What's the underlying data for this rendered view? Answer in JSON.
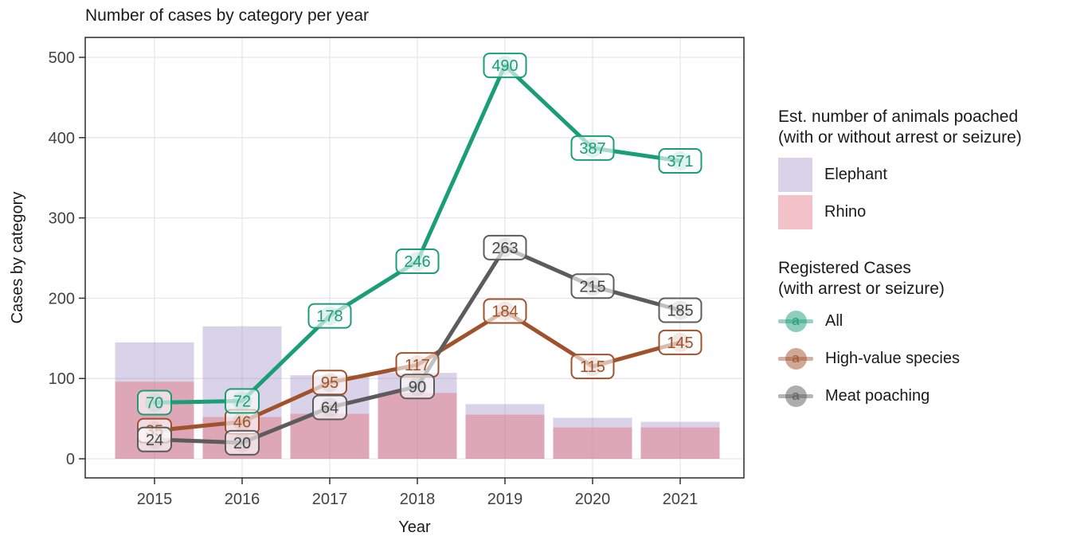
{
  "title": "Number of cases by category per year",
  "axes": {
    "x_label": "Year",
    "y_label": "Cases by category",
    "x_ticks": [
      "2015",
      "2016",
      "2017",
      "2018",
      "2019",
      "2020",
      "2021"
    ],
    "y_ticks": [
      0,
      100,
      200,
      300,
      400,
      500
    ]
  },
  "legend_animals": {
    "title_line1": "Est. number of animals poached",
    "title_line2": "(with or without arrest or seizure)",
    "items": [
      {
        "label": "Elephant",
        "color": "#D9D2E9"
      },
      {
        "label": "Rhino",
        "color": "#F3C2C8"
      }
    ]
  },
  "legend_cases": {
    "title_line1": "Registered Cases",
    "title_line2": "(with arrest or seizure)",
    "key_glyph": "a",
    "items": [
      {
        "label": "All",
        "color": "#1B9E77"
      },
      {
        "label": "High-value species",
        "color": "#A0522D"
      },
      {
        "label": "Meat poaching",
        "color": "#5C5C5C"
      }
    ]
  },
  "chart_data": {
    "type": "bar+line",
    "title": "Number of cases by category per year",
    "xlabel": "Year",
    "ylabel": "Cases by category",
    "categories": [
      "2015",
      "2016",
      "2017",
      "2018",
      "2019",
      "2020",
      "2021"
    ],
    "ylim": [
      0,
      500
    ],
    "grid": true,
    "legend_position": "right",
    "bar_series": [
      {
        "name": "Elephant",
        "values": [
          145,
          165,
          104,
          107,
          68,
          51,
          46
        ],
        "values_estimated": true,
        "fill": "rgba(148,125,190,0.35)",
        "legend_color": "#D9D2E9"
      },
      {
        "name": "Rhino",
        "values": [
          96,
          52,
          56,
          82,
          55,
          39,
          39
        ],
        "values_estimated": true,
        "fill": "rgba(228,102,112,0.40)",
        "legend_color": "#F3C2C8"
      }
    ],
    "line_series": [
      {
        "name": "All",
        "values": [
          70,
          72,
          178,
          246,
          490,
          387,
          371
        ],
        "color": "#1B9E77",
        "text_color": "#1B9E77"
      },
      {
        "name": "High-value species",
        "values": [
          35,
          46,
          95,
          117,
          184,
          115,
          145
        ],
        "color": "#A0522D",
        "text_color": "#A0522D"
      },
      {
        "name": "Meat poaching",
        "values": [
          24,
          20,
          64,
          90,
          263,
          215,
          185
        ],
        "color": "#5C5C5C",
        "text_color": "#474747"
      }
    ]
  }
}
